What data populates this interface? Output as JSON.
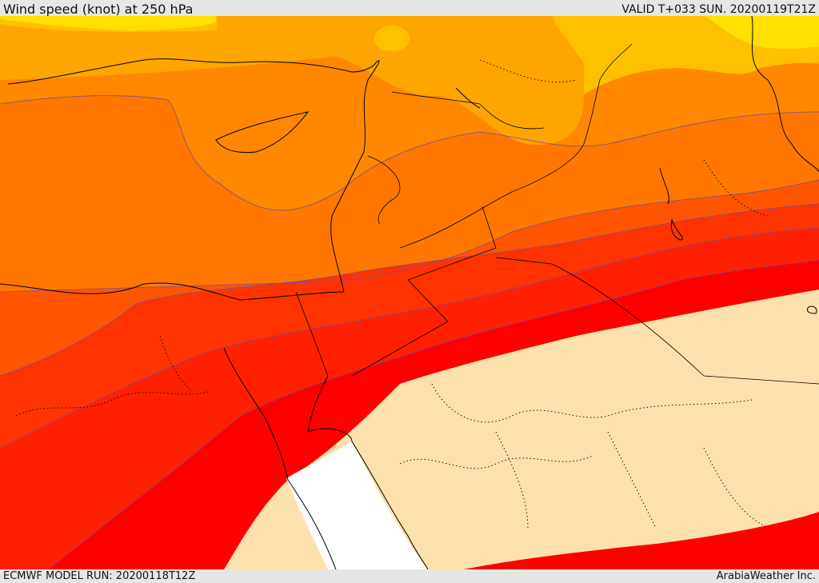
{
  "header": {
    "title": "Wind speed (knot) at 250 hPa",
    "valid": "VALID T+033 SUN. 20200119T21Z"
  },
  "footer": {
    "model_run": "ECMWF MODEL RUN: 20200118T12Z",
    "credit": "ArabiaWeather Inc."
  },
  "colors": {
    "band_yellow": "#ffe000",
    "band_gold": "#ffc000",
    "band_amber": "#ffa500",
    "band_orange_light": "#ff8800",
    "band_orange": "#ff7700",
    "band_orange_dark": "#ff5500",
    "band_red_orange": "#ff3300",
    "band_red_light": "#ff2000",
    "band_red": "#ff0000",
    "band_pale": "#fde1ad",
    "sea_low_wind": "#ffffff"
  }
}
